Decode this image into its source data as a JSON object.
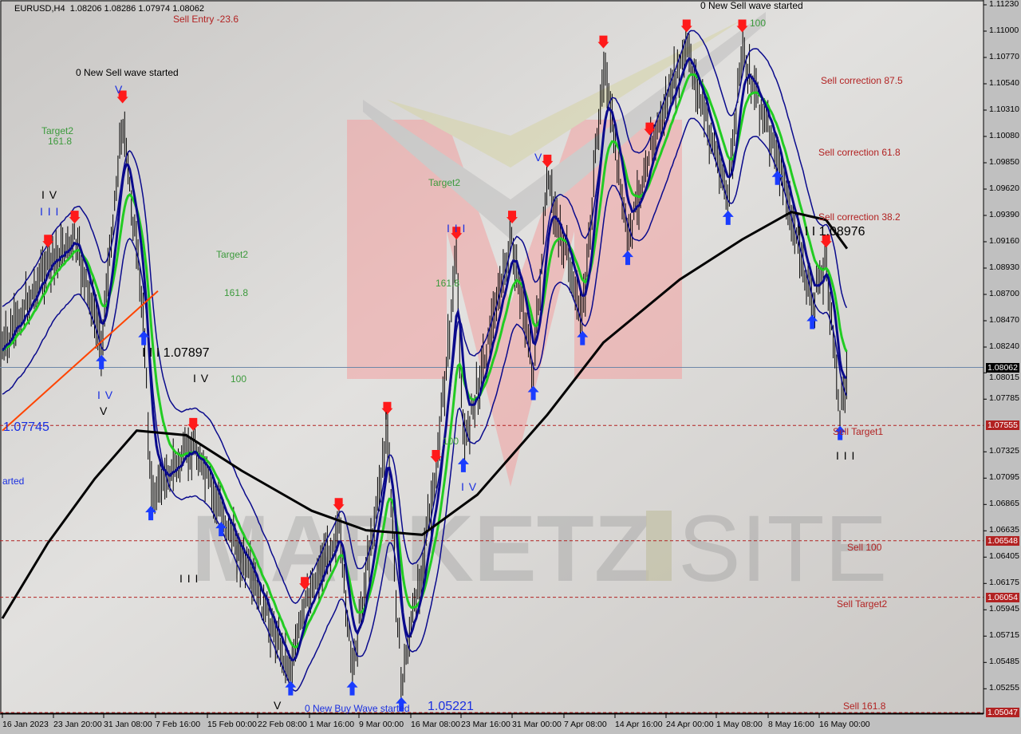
{
  "header": {
    "symbol": "EURUSD,H4",
    "open": "1.08206",
    "high": "1.08286",
    "low": "1.07974",
    "close": "1.08062"
  },
  "colors": {
    "background": "#d0cecc",
    "bars": "#000000",
    "ma_slow": "#000000",
    "ma_green": "#22cc22",
    "ma_navy": "#0a0a8c",
    "trendline": "#ff4400",
    "sell_line": "#b22222",
    "current_price": "#6d87a8",
    "logo_pink": "#f2a0a0"
  },
  "logo": {
    "text_left": "MARKETZ",
    "text_right": "SITE"
  },
  "price_axis": {
    "ticks": [
      "1.11230",
      "1.11000",
      "1.10770",
      "1.10540",
      "1.10310",
      "1.10080",
      "1.09850",
      "1.09620",
      "1.09390",
      "1.09160",
      "1.08930",
      "1.08700",
      "1.08470",
      "1.08240",
      "1.08015",
      "1.07785",
      "1.07325",
      "1.07095",
      "1.06865",
      "1.06635",
      "1.06405",
      "1.06175",
      "1.05945",
      "1.05715",
      "1.05485",
      "1.05255"
    ],
    "current_price": "1.08062",
    "levels": [
      {
        "price": "1.07555",
        "label": "Sell Target1"
      },
      {
        "price": "1.06548",
        "label": "Sell 100"
      },
      {
        "price": "1.06054",
        "label": "Sell Target2"
      },
      {
        "price": "1.05047",
        "label": "Sell 161.8"
      }
    ]
  },
  "time_axis": [
    "16 Jan 2023",
    "23 Jan 20:00",
    "31 Jan 08:00",
    "7 Feb 16:00",
    "15 Feb 00:00",
    "22 Feb 08:00",
    "1 Mar 16:00",
    "9 Mar 00:00",
    "16 Mar 08:00",
    "23 Mar 16:00",
    "31 Mar 00:00",
    "7 Apr 08:00",
    "14 Apr 16:00",
    "24 Apr 00:00",
    "1 May 08:00",
    "8 May 16:00",
    "16 May 00:00"
  ],
  "annotations": {
    "sell_wave_1": "0 New Sell wave started",
    "sell_wave_2": "0 New Sell wave started",
    "buy_wave": "0 New Buy Wave started",
    "buy_wave_price": "1.05221",
    "sell_entry": "Sell Entry -23.6",
    "target2_a": "Target2",
    "fib_a": "161.8",
    "target2_b": "Target2",
    "fib_b": "161.8",
    "fib_b100": "100",
    "target2_c": "Target2",
    "fib_c": "161.8",
    "fib_c100": "100",
    "fib_top100": "100",
    "sell_corr_875": "Sell correction 87.5",
    "sell_corr_618": "Sell correction 61.8",
    "sell_corr_382": "Sell correction 38.2",
    "price_mark_1": "I I I 1.08976",
    "price_mark_2": "I I I 1.07897",
    "price_mark_3": "1.07745",
    "partial_started": "arted",
    "waves": [
      "I V",
      "I I I",
      "V",
      "I V",
      "V",
      "I V",
      "I I I",
      "V",
      "I",
      "I I I",
      "I V",
      "V",
      "I I I"
    ]
  },
  "chart_data": {
    "type": "ohlc-bar",
    "symbol": "EURUSD",
    "timeframe": "H4",
    "price_path": [
      [
        "2023-01-16",
        1.0821
      ],
      [
        "2023-01-23",
        1.0897
      ],
      [
        "2023-01-27",
        1.0918
      ],
      [
        "2023-01-31",
        1.0827
      ],
      [
        "2023-02-03",
        1.1023
      ],
      [
        "2023-02-06",
        1.0848
      ],
      [
        "2023-02-07",
        1.0695
      ],
      [
        "2023-02-13",
        1.0737
      ],
      [
        "2023-02-17",
        1.0681
      ],
      [
        "2023-02-27",
        1.0542
      ],
      [
        "2023-03-01",
        1.0598
      ],
      [
        "2023-03-06",
        1.0667
      ],
      [
        "2023-03-08",
        1.0542
      ],
      [
        "2023-03-13",
        1.0751
      ],
      [
        "2023-03-15",
        1.0528
      ],
      [
        "2023-03-20",
        1.0709
      ],
      [
        "2023-03-23",
        1.0904
      ],
      [
        "2023-03-24",
        1.0737
      ],
      [
        "2023-03-31",
        1.0918
      ],
      [
        "2023-04-03",
        1.08
      ],
      [
        "2023-04-05",
        1.0967
      ],
      [
        "2023-04-10",
        1.0848
      ],
      [
        "2023-04-13",
        1.1071
      ],
      [
        "2023-04-17",
        1.0918
      ],
      [
        "2023-04-21",
        1.0995
      ],
      [
        "2023-04-27",
        1.1085
      ],
      [
        "2023-05-03",
        1.0953
      ],
      [
        "2023-05-05",
        1.1085
      ],
      [
        "2023-05-10",
        1.0988
      ],
      [
        "2023-05-15",
        1.0862
      ],
      [
        "2023-05-17",
        1.0897
      ],
      [
        "2023-05-19",
        1.0765
      ],
      [
        "2023-05-20",
        1.0806
      ]
    ],
    "ma_slow": [
      [
        "2023-01-16",
        1.0587
      ],
      [
        "2023-01-23",
        1.0653
      ],
      [
        "2023-01-30",
        1.0709
      ],
      [
        "2023-02-05",
        1.0751
      ],
      [
        "2023-02-12",
        1.0747
      ],
      [
        "2023-02-20",
        1.0716
      ],
      [
        "2023-03-02",
        1.0681
      ],
      [
        "2023-03-10",
        1.0664
      ],
      [
        "2023-03-18",
        1.066
      ],
      [
        "2023-03-26",
        1.0695
      ],
      [
        "2023-04-05",
        1.0765
      ],
      [
        "2023-04-13",
        1.0828
      ],
      [
        "2023-04-26",
        1.0883
      ],
      [
        "2023-05-05",
        1.0918
      ],
      [
        "2023-05-12",
        1.0942
      ],
      [
        "2023-05-17",
        1.0935
      ],
      [
        "2023-05-20",
        1.091
      ]
    ],
    "trendline": [
      [
        "2023-01-16",
        1.0751
      ],
      [
        "2023-02-08",
        1.0873
      ]
    ],
    "ylim": [
      1.0495,
      1.1128
    ]
  }
}
